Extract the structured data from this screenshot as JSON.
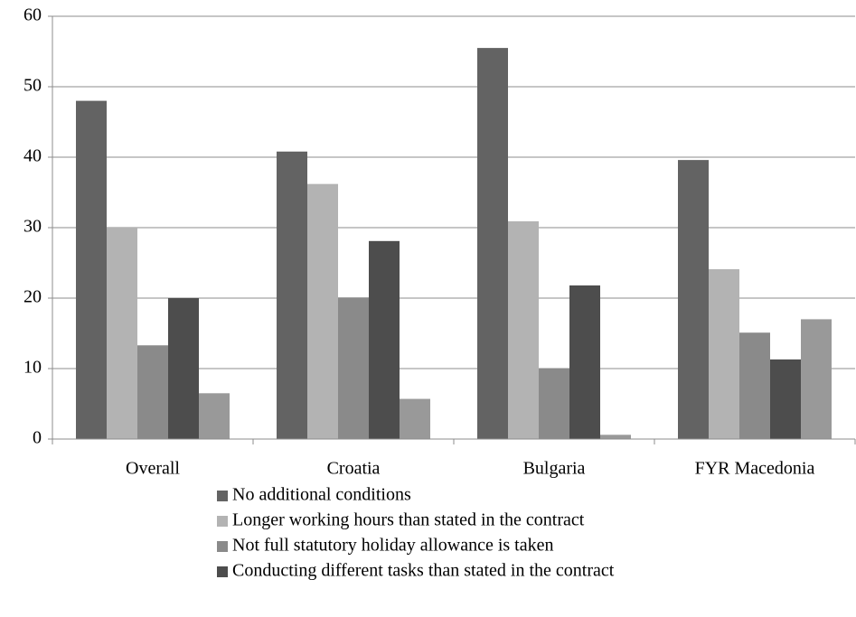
{
  "chart_data": {
    "type": "bar",
    "categories": [
      "Overall",
      "Croatia",
      "Bulgaria",
      "FYR Macedonia"
    ],
    "series": [
      {
        "name": "No additional conditions",
        "color": "#636363",
        "values": [
          48,
          40.8,
          55.5,
          39.6
        ]
      },
      {
        "name": "Longer working hours than stated in the contract",
        "color": "#b3b3b3",
        "values": [
          30,
          36.2,
          30.9,
          24.1
        ]
      },
      {
        "name": "Not full statutory holiday allowance is taken",
        "color": "#8a8a8a",
        "values": [
          13.3,
          20.1,
          10,
          15.1
        ]
      },
      {
        "name": "Conducting different tasks than stated in the contract",
        "color": "#4d4d4d",
        "values": [
          20,
          28.1,
          21.8,
          11.3
        ]
      },
      {
        "color": "#999999",
        "values": [
          6.5,
          5.7,
          0.6,
          17
        ]
      }
    ],
    "ylim": [
      0,
      60
    ],
    "yticks": [
      0,
      10,
      20,
      30,
      40,
      50,
      60
    ],
    "grid": true
  }
}
